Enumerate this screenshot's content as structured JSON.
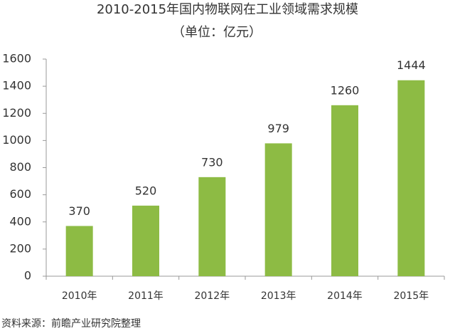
{
  "chart_data": {
    "type": "bar",
    "title": "2010-2015年国内物联网在工业领域需求规模",
    "subtitle": "（单位：亿元）",
    "source": "资料来源：前瞻产业研究院整理",
    "categories": [
      "2010年",
      "2011年",
      "2012年",
      "2013年",
      "2014年",
      "2015年"
    ],
    "values": [
      370,
      520,
      730,
      979,
      1260,
      1444
    ],
    "color": "#8dbb44",
    "ylim": [
      0,
      1600
    ],
    "yticks": [
      0,
      200,
      400,
      600,
      800,
      1000,
      1200,
      1400,
      1600
    ],
    "grid": false
  }
}
